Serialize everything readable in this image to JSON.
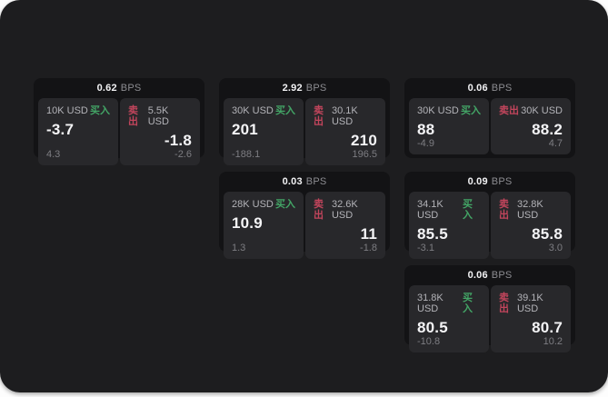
{
  "labels": {
    "bps_unit": "BPS",
    "buy": "买入",
    "sell": "卖出"
  },
  "colors": {
    "page_bg": "#1d1d1f",
    "card_bg": "#131315",
    "tile_bg": "#28282b",
    "buy_green": "#43a566",
    "sell_red": "#c2455c"
  },
  "cards": [
    {
      "bps": "0.62",
      "buy": {
        "notional": "10K USD",
        "price": "-3.7",
        "change": "4.3"
      },
      "sell": {
        "notional": "5.5K USD",
        "price": "-1.8",
        "change": "-2.6"
      }
    },
    {
      "bps": "2.92",
      "buy": {
        "notional": "30K USD",
        "price": "201",
        "change": "-188.1"
      },
      "sell": {
        "notional": "30.1K USD",
        "price": "210",
        "change": "196.5"
      }
    },
    {
      "bps": "0.06",
      "buy": {
        "notional": "30K USD",
        "price": "88",
        "change": "-4.9"
      },
      "sell": {
        "notional": "30K USD",
        "price": "88.2",
        "change": "4.7"
      }
    },
    {
      "bps": "0.03",
      "buy": {
        "notional": "28K USD",
        "price": "10.9",
        "change": "1.3"
      },
      "sell": {
        "notional": "32.6K USD",
        "price": "11",
        "change": "-1.8"
      }
    },
    {
      "bps": "0.09",
      "buy": {
        "notional": "34.1K USD",
        "price": "85.5",
        "change": "-3.1"
      },
      "sell": {
        "notional": "32.8K USD",
        "price": "85.8",
        "change": "3.0"
      }
    },
    {
      "bps": "0.06",
      "buy": {
        "notional": "31.8K USD",
        "price": "80.5",
        "change": "-10.8"
      },
      "sell": {
        "notional": "39.1K USD",
        "price": "80.7",
        "change": "10.2"
      }
    }
  ]
}
